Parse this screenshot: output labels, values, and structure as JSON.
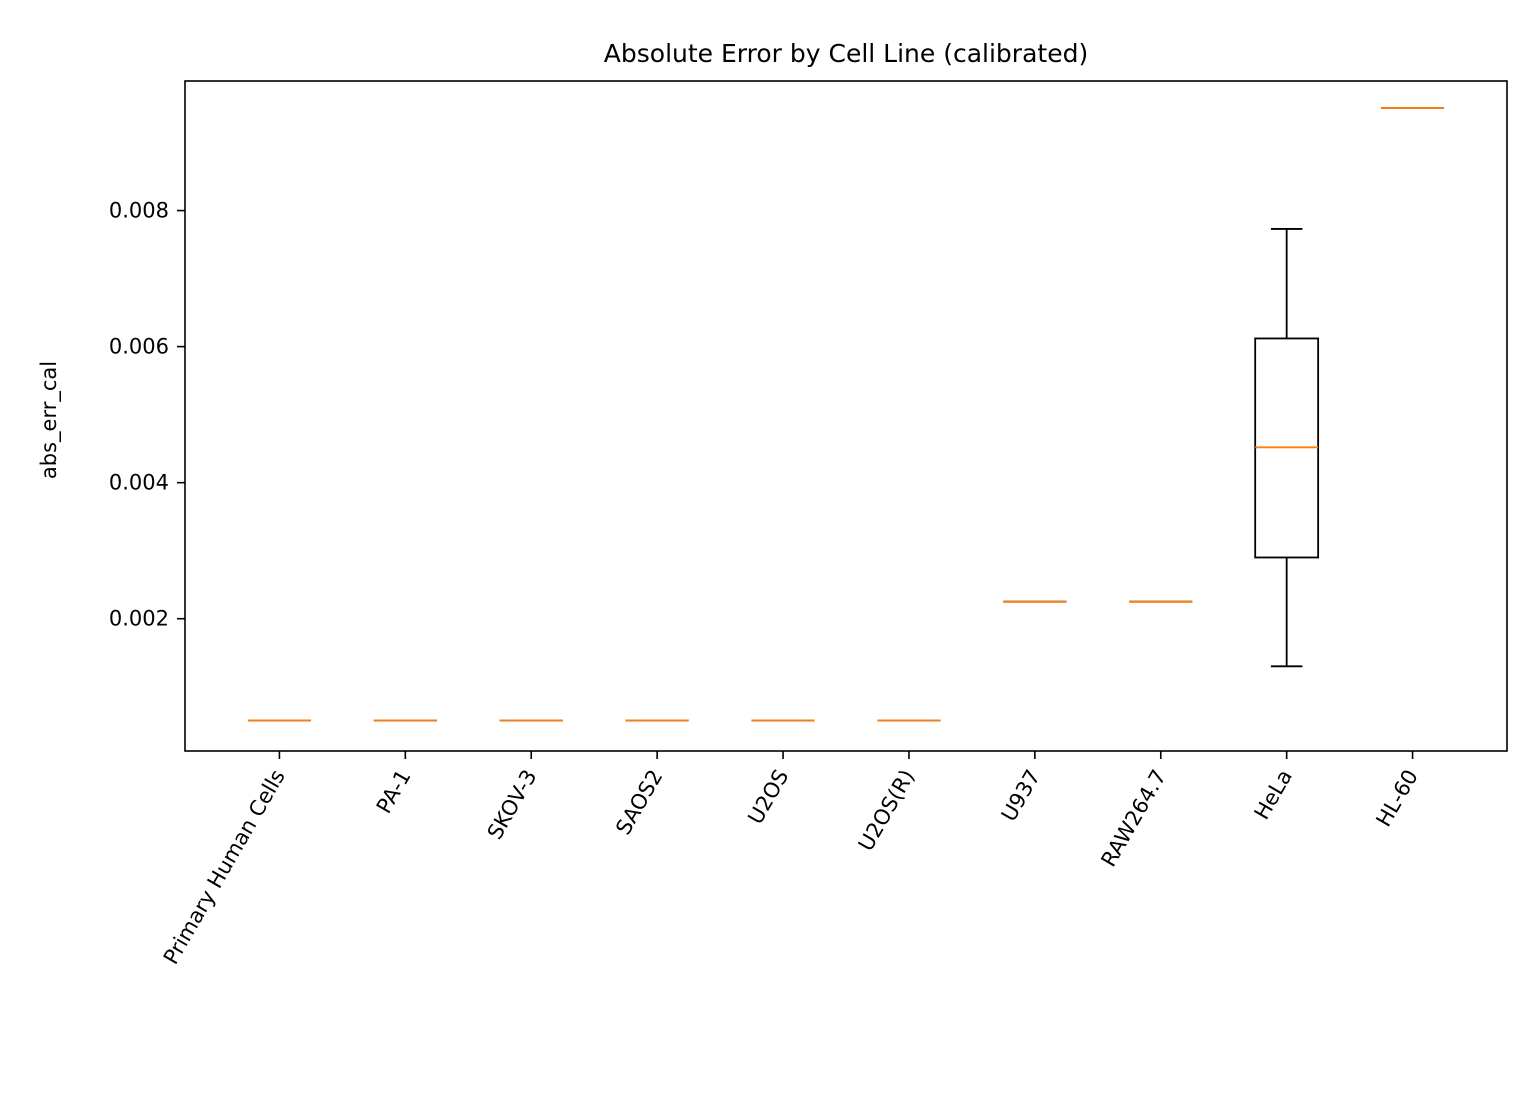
{
  "chart_data": {
    "type": "box",
    "title": "Absolute Error by Cell Line (calibrated)",
    "xlabel": "",
    "ylabel": "abs_err_cal",
    "ylim": [
      5.5e-05,
      0.009905
    ],
    "yticks": [
      "0.002",
      "0.004",
      "0.006",
      "0.008"
    ],
    "ytick_values": [
      0.002,
      0.004,
      0.006,
      0.008
    ],
    "categories": [
      "Primary Human Cells",
      "PA-1",
      "SKOV-3",
      "SAOS2",
      "U2OS",
      "U2OS(R)",
      "U937",
      "RAW264.7",
      "HeLa",
      "HL-60"
    ],
    "boxes": [
      {
        "category": "Primary Human Cells",
        "whisker_low": 0.000505,
        "q1": 0.000505,
        "median": 0.000505,
        "q3": 0.000505,
        "whisker_high": 0.000505
      },
      {
        "category": "PA-1",
        "whisker_low": 0.000505,
        "q1": 0.000505,
        "median": 0.000505,
        "q3": 0.000505,
        "whisker_high": 0.000505
      },
      {
        "category": "SKOV-3",
        "whisker_low": 0.000505,
        "q1": 0.000505,
        "median": 0.000505,
        "q3": 0.000505,
        "whisker_high": 0.000505
      },
      {
        "category": "SAOS2",
        "whisker_low": 0.000505,
        "q1": 0.000505,
        "median": 0.000505,
        "q3": 0.000505,
        "whisker_high": 0.000505
      },
      {
        "category": "U2OS",
        "whisker_low": 0.000505,
        "q1": 0.000505,
        "median": 0.000505,
        "q3": 0.000505,
        "whisker_high": 0.000505
      },
      {
        "category": "U2OS(R)",
        "whisker_low": 0.000505,
        "q1": 0.000505,
        "median": 0.000505,
        "q3": 0.000505,
        "whisker_high": 0.000505
      },
      {
        "category": "U937",
        "whisker_low": 0.00225,
        "q1": 0.00225,
        "median": 0.00225,
        "q3": 0.00225,
        "whisker_high": 0.00225
      },
      {
        "category": "RAW264.7",
        "whisker_low": 0.00225,
        "q1": 0.00225,
        "median": 0.00225,
        "q3": 0.00225,
        "whisker_high": 0.00225
      },
      {
        "category": "HeLa",
        "whisker_low": 0.0013,
        "q1": 0.0029,
        "median": 0.00452,
        "q3": 0.00612,
        "whisker_high": 0.00773
      },
      {
        "category": "HL-60",
        "whisker_low": 0.00951,
        "q1": 0.00951,
        "median": 0.00951,
        "q3": 0.00951,
        "whisker_high": 0.00951
      }
    ],
    "grid": false,
    "legend": "none",
    "colors": {
      "box": "#000000",
      "median": "#ff7f0e"
    }
  }
}
